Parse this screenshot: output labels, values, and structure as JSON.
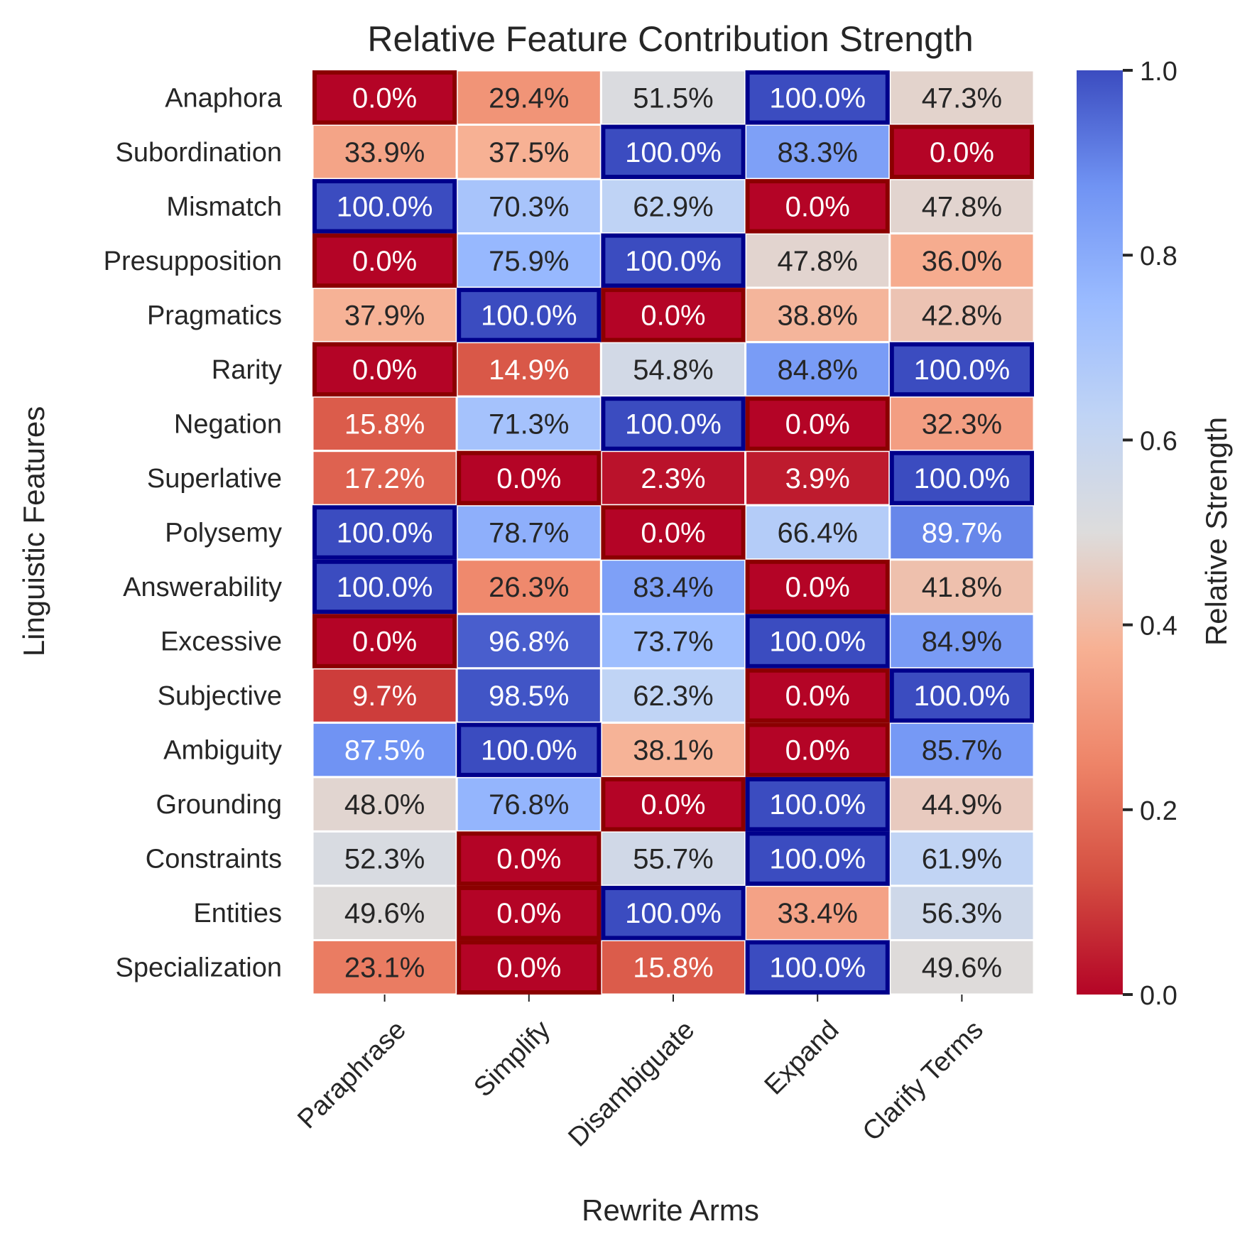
{
  "chart_data": {
    "type": "heatmap",
    "title": "Relative Feature Contribution Strength",
    "xlabel": "Rewrite Arms",
    "ylabel": "Linguistic Features",
    "x_categories": [
      "Paraphrase",
      "Simplify",
      "Disambiguate",
      "Expand",
      "Clarify Terms"
    ],
    "y_categories": [
      "Anaphora",
      "Subordination",
      "Mismatch",
      "Presupposition",
      "Pragmatics",
      "Rarity",
      "Negation",
      "Superlative",
      "Polysemy",
      "Answerability",
      "Excessive",
      "Subjective",
      "Ambiguity",
      "Grounding",
      "Constraints",
      "Entities",
      "Specialization"
    ],
    "values": [
      [
        0.0,
        29.4,
        51.5,
        100.0,
        47.3
      ],
      [
        33.9,
        37.5,
        100.0,
        83.3,
        0.0
      ],
      [
        100.0,
        70.3,
        62.9,
        0.0,
        47.8
      ],
      [
        0.0,
        75.9,
        100.0,
        47.8,
        36.0
      ],
      [
        37.9,
        100.0,
        0.0,
        38.8,
        42.8
      ],
      [
        0.0,
        14.9,
        54.8,
        84.8,
        100.0
      ],
      [
        15.8,
        71.3,
        100.0,
        0.0,
        32.3
      ],
      [
        17.2,
        0.0,
        2.3,
        3.9,
        100.0
      ],
      [
        100.0,
        78.7,
        0.0,
        66.4,
        89.7
      ],
      [
        100.0,
        26.3,
        83.4,
        0.0,
        41.8
      ],
      [
        0.0,
        96.8,
        73.7,
        100.0,
        84.9
      ],
      [
        9.7,
        98.5,
        62.3,
        0.0,
        100.0
      ],
      [
        87.5,
        100.0,
        38.1,
        0.0,
        85.7
      ],
      [
        48.0,
        76.8,
        0.0,
        100.0,
        44.9
      ],
      [
        52.3,
        0.0,
        55.7,
        100.0,
        61.9
      ],
      [
        49.6,
        0.0,
        100.0,
        33.4,
        56.3
      ],
      [
        23.1,
        0.0,
        15.8,
        100.0,
        49.6
      ]
    ],
    "value_suffix": "%",
    "colormap": "coolwarm_r",
    "highlight": {
      "max_border_color": "#00008b",
      "min_border_color": "#8b0000"
    },
    "colorbar": {
      "label": "Relative Strength",
      "range": [
        0.0,
        1.0
      ],
      "ticks": [
        0.0,
        0.2,
        0.4,
        0.6,
        0.8,
        1.0
      ],
      "tick_labels": [
        "0.0",
        "0.2",
        "0.4",
        "0.6",
        "0.8",
        "1.0"
      ]
    }
  }
}
